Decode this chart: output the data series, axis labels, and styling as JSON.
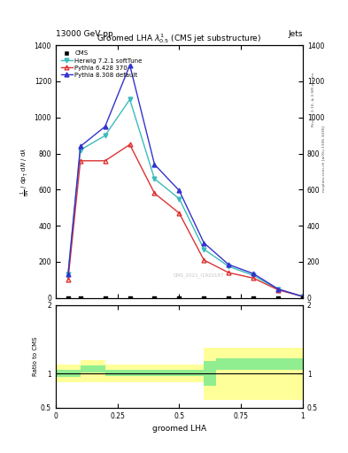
{
  "title": "Groomed LHA $\\lambda^{1}_{0.5}$ (CMS jet substructure)",
  "header": "13000 GeV pp",
  "header_right": "Jets",
  "xlabel": "groomed LHA",
  "ylabel_lines": [
    "mathrm d$^2$N",
    "mathrm d p$_\\mathrm{T}$ mathrm d $\\lambda$"
  ],
  "ylabel_ratio": "Ratio to CMS",
  "watermark": "CMS_2021_I1920187",
  "rivet_label": "Rivet 3.1.10, ≥ 3.5M events",
  "inspire_label": "mcplots.cern.ch [arXiv:1306.3436]",
  "herwig_x": [
    0.05,
    0.1,
    0.2,
    0.3,
    0.4,
    0.5,
    0.6,
    0.7,
    0.8,
    0.9,
    1.0
  ],
  "herwig_y": [
    130,
    820,
    900,
    1100,
    660,
    550,
    270,
    175,
    125,
    48,
    8
  ],
  "pythia6_x": [
    0.05,
    0.1,
    0.2,
    0.3,
    0.4,
    0.5,
    0.6,
    0.7,
    0.8,
    0.9,
    1.0
  ],
  "pythia6_y": [
    100,
    760,
    760,
    850,
    580,
    470,
    210,
    140,
    110,
    45,
    8
  ],
  "pythia8_x": [
    0.05,
    0.1,
    0.2,
    0.3,
    0.4,
    0.5,
    0.6,
    0.7,
    0.8,
    0.9,
    1.0
  ],
  "pythia8_y": [
    130,
    840,
    950,
    1290,
    740,
    595,
    305,
    185,
    135,
    50,
    8
  ],
  "cms_x": [
    0.05,
    0.1,
    0.2,
    0.3,
    0.4,
    0.5,
    0.6,
    0.7,
    0.8,
    0.9,
    1.0
  ],
  "cms_y": [
    0,
    0,
    0,
    0,
    0,
    0,
    0,
    0,
    0,
    0,
    0
  ],
  "herwig_color": "#3DBBBB",
  "pythia6_color": "#DD3333",
  "pythia8_color": "#3333CC",
  "ratio_x_edges": [
    0.0,
    0.1,
    0.2,
    0.3,
    0.4,
    0.5,
    0.6,
    0.65,
    1.0
  ],
  "ratio_green_lo": [
    0.95,
    1.02,
    0.96,
    0.96,
    0.96,
    0.96,
    0.82,
    1.05
  ],
  "ratio_green_hi": [
    1.05,
    1.12,
    1.05,
    1.05,
    1.05,
    1.05,
    1.18,
    1.22
  ],
  "ratio_yellow_lo": [
    0.87,
    0.87,
    0.87,
    0.87,
    0.87,
    0.87,
    0.62,
    0.62
  ],
  "ratio_yellow_hi": [
    1.13,
    1.2,
    1.13,
    1.13,
    1.13,
    1.13,
    1.38,
    1.38
  ],
  "ylim_main": [
    0,
    1400
  ],
  "ylim_ratio": [
    0.5,
    2.0
  ],
  "xlim": [
    0.0,
    1.0
  ]
}
